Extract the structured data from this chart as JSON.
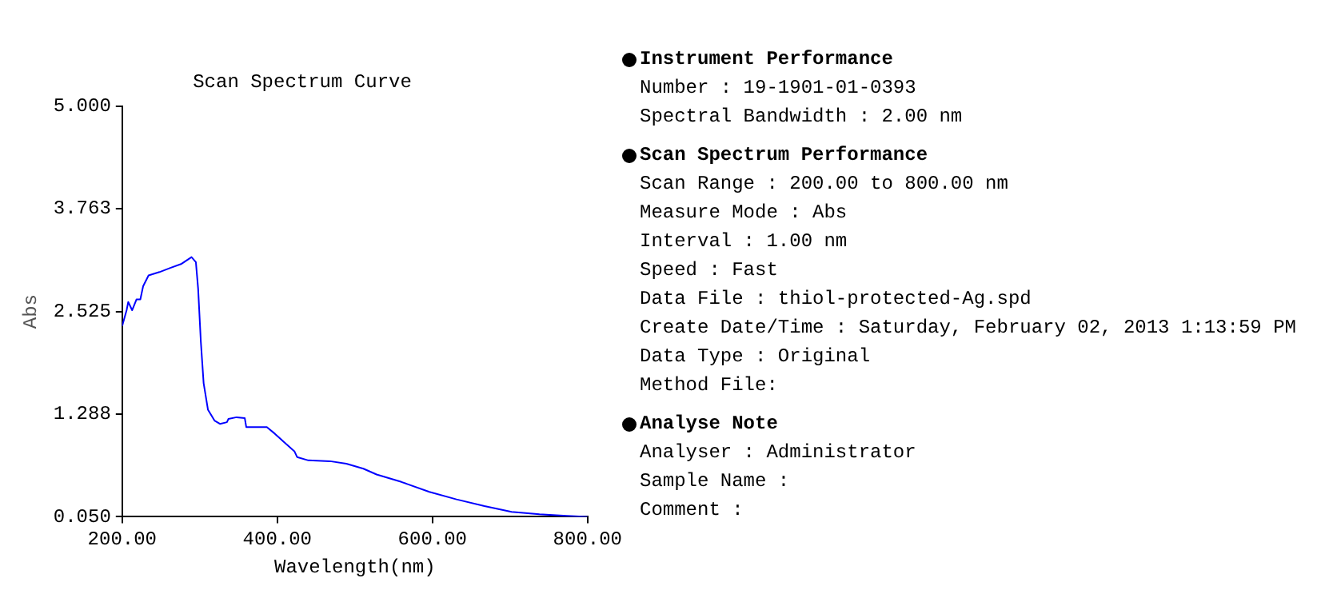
{
  "chart_data": [
    {
      "type": "line",
      "title": "Scan Spectrum Curve",
      "xlabel": "Wavelength(nm)",
      "ylabel": "Abs",
      "marker": "none",
      "legend": false,
      "xlim": [
        200,
        800
      ],
      "xticks": [
        {
          "value": 200,
          "label": "200.00"
        },
        {
          "value": 400,
          "label": "400.00"
        },
        {
          "value": 600,
          "label": "600.00"
        },
        {
          "value": 800,
          "label": "800.00"
        }
      ],
      "ylim": [
        0.05,
        5
      ],
      "yticks": [
        {
          "value": 0.05,
          "label": "0.050"
        },
        {
          "value": 1.288,
          "label": "1.288"
        },
        {
          "value": 2.525,
          "label": "2.525"
        },
        {
          "value": 3.763,
          "label": "3.763"
        },
        {
          "value": 5,
          "label": "5.000"
        }
      ],
      "series": [
        {
          "color": "#0000ff",
          "x": [
            200,
            205.7,
            207.8,
            212.8,
            218.4,
            223.4,
            227,
            234,
            248,
            262,
            276.6,
            289.4,
            295,
            297.9,
            301.4,
            305,
            310.6,
            319,
            326,
            335,
            337,
            347.5,
            358,
            360,
            376,
            386.5,
            397,
            411,
            422,
            425.5,
            440,
            468,
            489,
            511,
            528,
            560,
            596,
            631,
            667,
            702,
            738,
            773,
            800
          ],
          "values": [
            2.35,
            2.54,
            2.64,
            2.54,
            2.67,
            2.67,
            2.83,
            2.96,
            3.0,
            3.05,
            3.1,
            3.18,
            3.12,
            2.8,
            2.16,
            1.66,
            1.34,
            1.21,
            1.17,
            1.19,
            1.23,
            1.25,
            1.24,
            1.13,
            1.13,
            1.13,
            1.05,
            0.93,
            0.84,
            0.77,
            0.73,
            0.72,
            0.69,
            0.63,
            0.56,
            0.47,
            0.35,
            0.26,
            0.18,
            0.11,
            0.08,
            0.06,
            0.05
          ]
        }
      ]
    },
    {
      "type": "other",
      "title": "Instrument Performance",
      "annotations": [
        "Number : 19-1901-01-0393",
        "Spectral Bandwidth : 2.00 nm"
      ]
    },
    {
      "type": "other",
      "title": "Scan Spectrum Performance",
      "annotations": [
        "Scan Range : 200.00 to 800.00 nm",
        "Measure Mode : Abs",
        "Interval : 1.00 nm",
        "Speed : Fast",
        "Data File : thiol-protected-Ag.spd",
        "Create Date/Time : Saturday, February 02, 2013 1:13:59 PM",
        "Data Type : Original",
        "Method File:"
      ]
    },
    {
      "type": "other",
      "title": "Analyse Note",
      "annotations": [
        "Analyser : Administrator",
        "Sample Name :",
        "Comment :"
      ]
    }
  ]
}
